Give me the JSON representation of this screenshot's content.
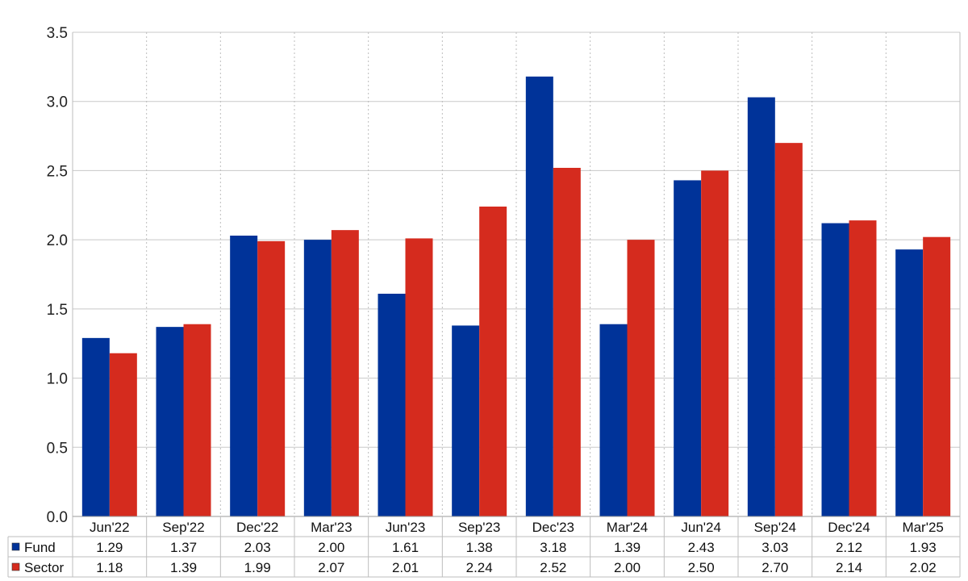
{
  "chart_data": {
    "type": "bar",
    "title": "",
    "xlabel": "",
    "ylabel": "",
    "categories": [
      "Jun'22",
      "Sep'22",
      "Dec'22",
      "Mar'23",
      "Jun'23",
      "Sep'23",
      "Dec'23",
      "Mar'24",
      "Jun'24",
      "Sep'24",
      "Dec'24",
      "Mar'25"
    ],
    "ylim": [
      0,
      3.5
    ],
    "yticks": [
      "0.0",
      "0.5",
      "1.0",
      "1.5",
      "2.0",
      "2.5",
      "3.0",
      "3.5"
    ],
    "grid": true,
    "legend_placement": "data-table-left",
    "series": [
      {
        "name": "Fund",
        "color": "#003399",
        "values": [
          1.29,
          1.37,
          2.03,
          2.0,
          1.61,
          1.38,
          3.18,
          1.39,
          2.43,
          3.03,
          2.12,
          1.93
        ],
        "labels": [
          "1.29",
          "1.37",
          "2.03",
          "2.00",
          "1.61",
          "1.38",
          "3.18",
          "1.39",
          "2.43",
          "3.03",
          "2.12",
          "1.93"
        ]
      },
      {
        "name": "Sector",
        "color": "#D52B1E",
        "values": [
          1.18,
          1.39,
          1.99,
          2.07,
          2.01,
          2.24,
          2.52,
          2.0,
          2.5,
          2.7,
          2.14,
          2.02
        ],
        "labels": [
          "1.18",
          "1.39",
          "1.99",
          "2.07",
          "2.01",
          "2.24",
          "2.52",
          "2.00",
          "2.50",
          "2.70",
          "2.14",
          "2.02"
        ]
      }
    ]
  }
}
